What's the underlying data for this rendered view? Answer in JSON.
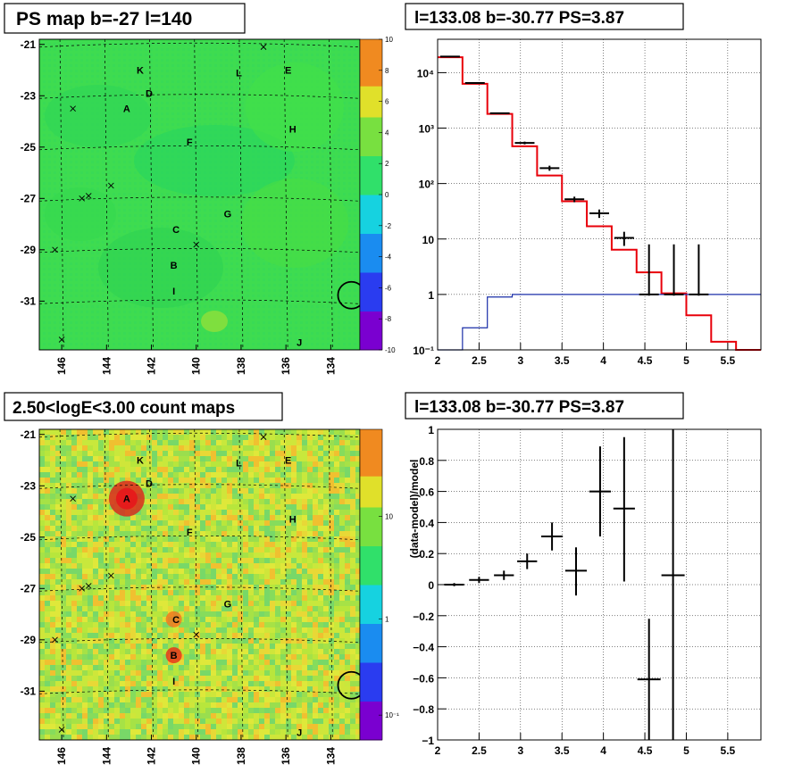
{
  "panels": {
    "ps_map_title": "PS map b=-27 l=140",
    "spectrum_title": "l=133.08 b=-30.77 PS=3.87",
    "count_map_title": "2.50<logE<3.00 count maps",
    "residual_title": "l=133.08 b=-30.77 PS=3.87"
  },
  "map_axes": {
    "y_ticks": [
      "-21",
      "-23",
      "-25",
      "-27",
      "-29",
      "-31"
    ],
    "x_ticks": [
      "146",
      "144",
      "142",
      "140",
      "138",
      "136",
      "134"
    ]
  },
  "ps_colorbar_ticks": [
    "10",
    "8",
    "6",
    "4",
    "2",
    "0",
    "-2",
    "-4",
    "-6",
    "-8",
    "-10"
  ],
  "count_colorbar_ticks": [
    "10",
    "1",
    "10⁻¹"
  ],
  "sources": [
    {
      "name": "K",
      "lon": 142.5,
      "lat": -22.0
    },
    {
      "name": "L",
      "lon": 138.1,
      "lat": -22.1
    },
    {
      "name": "E",
      "lon": 135.9,
      "lat": -22.0
    },
    {
      "name": "D",
      "lon": 142.1,
      "lat": -22.9
    },
    {
      "name": "A",
      "lon": 143.1,
      "lat": -23.5
    },
    {
      "name": "H",
      "lon": 135.7,
      "lat": -24.3
    },
    {
      "name": "F",
      "lon": 140.3,
      "lat": -24.8
    },
    {
      "name": "G",
      "lon": 138.6,
      "lat": -27.6
    },
    {
      "name": "C",
      "lon": 140.9,
      "lat": -28.2
    },
    {
      "name": "B",
      "lon": 141.0,
      "lat": -29.6
    },
    {
      "name": "I",
      "lon": 141.0,
      "lat": -30.6
    },
    {
      "name": "J",
      "lon": 135.4,
      "lat": -32.6
    }
  ],
  "ps_position": {
    "l": 133.08,
    "b": -30.77
  },
  "chart_data": [
    {
      "type": "line",
      "title": "l=133.08 b=-30.77 PS=3.87",
      "xlabel": "",
      "ylabel": "",
      "y_scale": "log",
      "xlim": [
        2,
        5.9
      ],
      "ylim": [
        0.1,
        40000
      ],
      "grid": true,
      "x_ticks": [
        "2",
        "2.5",
        "3",
        "3.5",
        "4",
        "4.5",
        "5",
        "5.5"
      ],
      "y_ticks": [
        "10⁻¹",
        "1",
        "10",
        "10²",
        "10³",
        "10⁴"
      ],
      "series": [
        {
          "style": "red step",
          "bin_edges": [
            2.0,
            2.3,
            2.6,
            2.9,
            3.2,
            3.5,
            3.8,
            4.1,
            4.4,
            4.7,
            5.0,
            5.3,
            5.6,
            5.9
          ],
          "values": [
            19000,
            6300,
            1800,
            470,
            140,
            48,
            17,
            6.4,
            2.5,
            1.05,
            0.42,
            0.14,
            0.1
          ]
        },
        {
          "style": "blue step",
          "bin_edges": [
            2.0,
            2.3,
            2.6,
            2.9,
            3.2,
            3.5,
            3.8,
            4.1,
            4.4,
            4.7,
            5.0,
            5.3,
            5.6,
            5.9
          ],
          "values": [
            0.06,
            0.25,
            0.9,
            1.0,
            1.0,
            1.0,
            1.0,
            1.0,
            1.0,
            1.0,
            1.0,
            1.0,
            1.0
          ]
        },
        {
          "style": "black points",
          "x": [
            2.15,
            2.45,
            2.75,
            3.05,
            3.35,
            3.65,
            3.95,
            4.25,
            4.55,
            4.85,
            5.15
          ],
          "y": [
            19500,
            6500,
            1850,
            540,
            190,
            52,
            29,
            10.5,
            1.0,
            1.0,
            1.0
          ],
          "err_lo": [
            19000,
            6300,
            1800,
            510,
            170,
            46,
            24,
            7.5,
            0.95,
            0.95,
            0.95
          ],
          "err_hi": [
            20000,
            6700,
            1900,
            570,
            210,
            58,
            34,
            13.5,
            8,
            8,
            8
          ]
        }
      ]
    },
    {
      "type": "scatter",
      "title": "l=133.08 b=-30.77 PS=3.87",
      "xlabel": "",
      "ylabel": "(data-model)/model",
      "xlim": [
        2,
        5.9
      ],
      "ylim": [
        -1,
        1
      ],
      "grid": true,
      "x_ticks": [
        "2",
        "2.5",
        "3",
        "3.5",
        "4",
        "4.5",
        "5",
        "5.5"
      ],
      "y_ticks": [
        "1",
        "0.8",
        "0.6",
        "0.4",
        "0.2",
        "0",
        "−0.2",
        "−0.4",
        "−0.6",
        "−0.8",
        "−1"
      ],
      "points": [
        {
          "x": 2.2,
          "y": 0.0,
          "xerr": 0.12,
          "ylo": -0.01,
          "yhi": 0.01
        },
        {
          "x": 2.5,
          "y": 0.03,
          "xerr": 0.12,
          "ylo": 0.01,
          "yhi": 0.05
        },
        {
          "x": 2.8,
          "y": 0.06,
          "xerr": 0.12,
          "ylo": 0.03,
          "yhi": 0.09
        },
        {
          "x": 3.08,
          "y": 0.15,
          "xerr": 0.12,
          "ylo": 0.1,
          "yhi": 0.2
        },
        {
          "x": 3.38,
          "y": 0.31,
          "xerr": 0.13,
          "ylo": 0.22,
          "yhi": 0.4
        },
        {
          "x": 3.67,
          "y": 0.09,
          "xerr": 0.13,
          "ylo": -0.07,
          "yhi": 0.24
        },
        {
          "x": 3.96,
          "y": 0.6,
          "xerr": 0.13,
          "ylo": 0.31,
          "yhi": 0.89
        },
        {
          "x": 4.25,
          "y": 0.49,
          "xerr": 0.13,
          "ylo": 0.02,
          "yhi": 0.95
        },
        {
          "x": 4.55,
          "y": -0.61,
          "xerr": 0.14,
          "ylo": -1.0,
          "yhi": -0.22
        },
        {
          "x": 4.84,
          "y": 0.06,
          "xerr": 0.14,
          "ylo": -1.0,
          "yhi": 1.0
        }
      ]
    }
  ]
}
